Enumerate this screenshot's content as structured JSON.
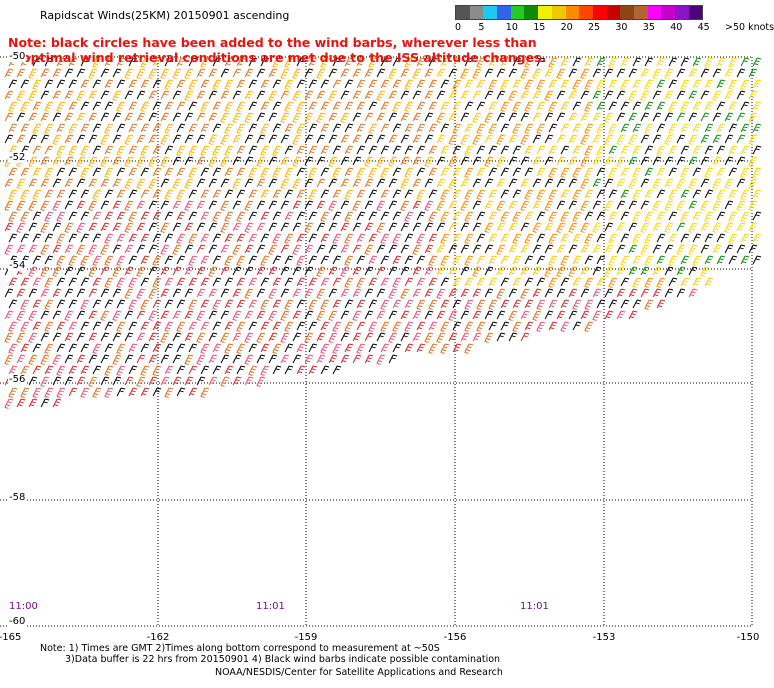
{
  "title": "Rapidscat Winds(25KM) 20150901 ascending",
  "note": {
    "line1": "Note: black circles have been added to the wind barbs, wherever less than",
    "line2": "optimal wind retrieval conditions are met due to the ISS altitude changes."
  },
  "colorbar": {
    "colors": [
      "#555555",
      "#8c8c8c",
      "#1ec8f0",
      "#3264e6",
      "#28c828",
      "#0a8c0a",
      "#f0f000",
      "#f0c800",
      "#ff8c00",
      "#ff4600",
      "#ff0000",
      "#c80000",
      "#8c4614",
      "#b46432",
      "#ff00ff",
      "#c800c8",
      "#8c14c8",
      "#500078"
    ],
    "labels": [
      "0",
      "5",
      "10",
      "15",
      "20",
      "25",
      "30",
      "35",
      "40",
      "45",
      ">50 knots"
    ]
  },
  "lat_labels": [
    "-50",
    "-52",
    "-54",
    "-56",
    "-58",
    "-60"
  ],
  "lon_labels": [
    "-165",
    "-162",
    "-159",
    "-156",
    "-153",
    "-150"
  ],
  "time_labels": [
    "11:00",
    "11:01",
    "11:01"
  ],
  "footer": {
    "line1": "Note: 1) Times are GMT 2)Times along bottom correspond to measurement at ~50S",
    "line2": "3)Data buffer is 22 hrs from 20150901 4) Black wind barbs indicate possible contamination",
    "line3": "NOAA/NESDIS/Center for Satellite Applications and Research"
  }
}
